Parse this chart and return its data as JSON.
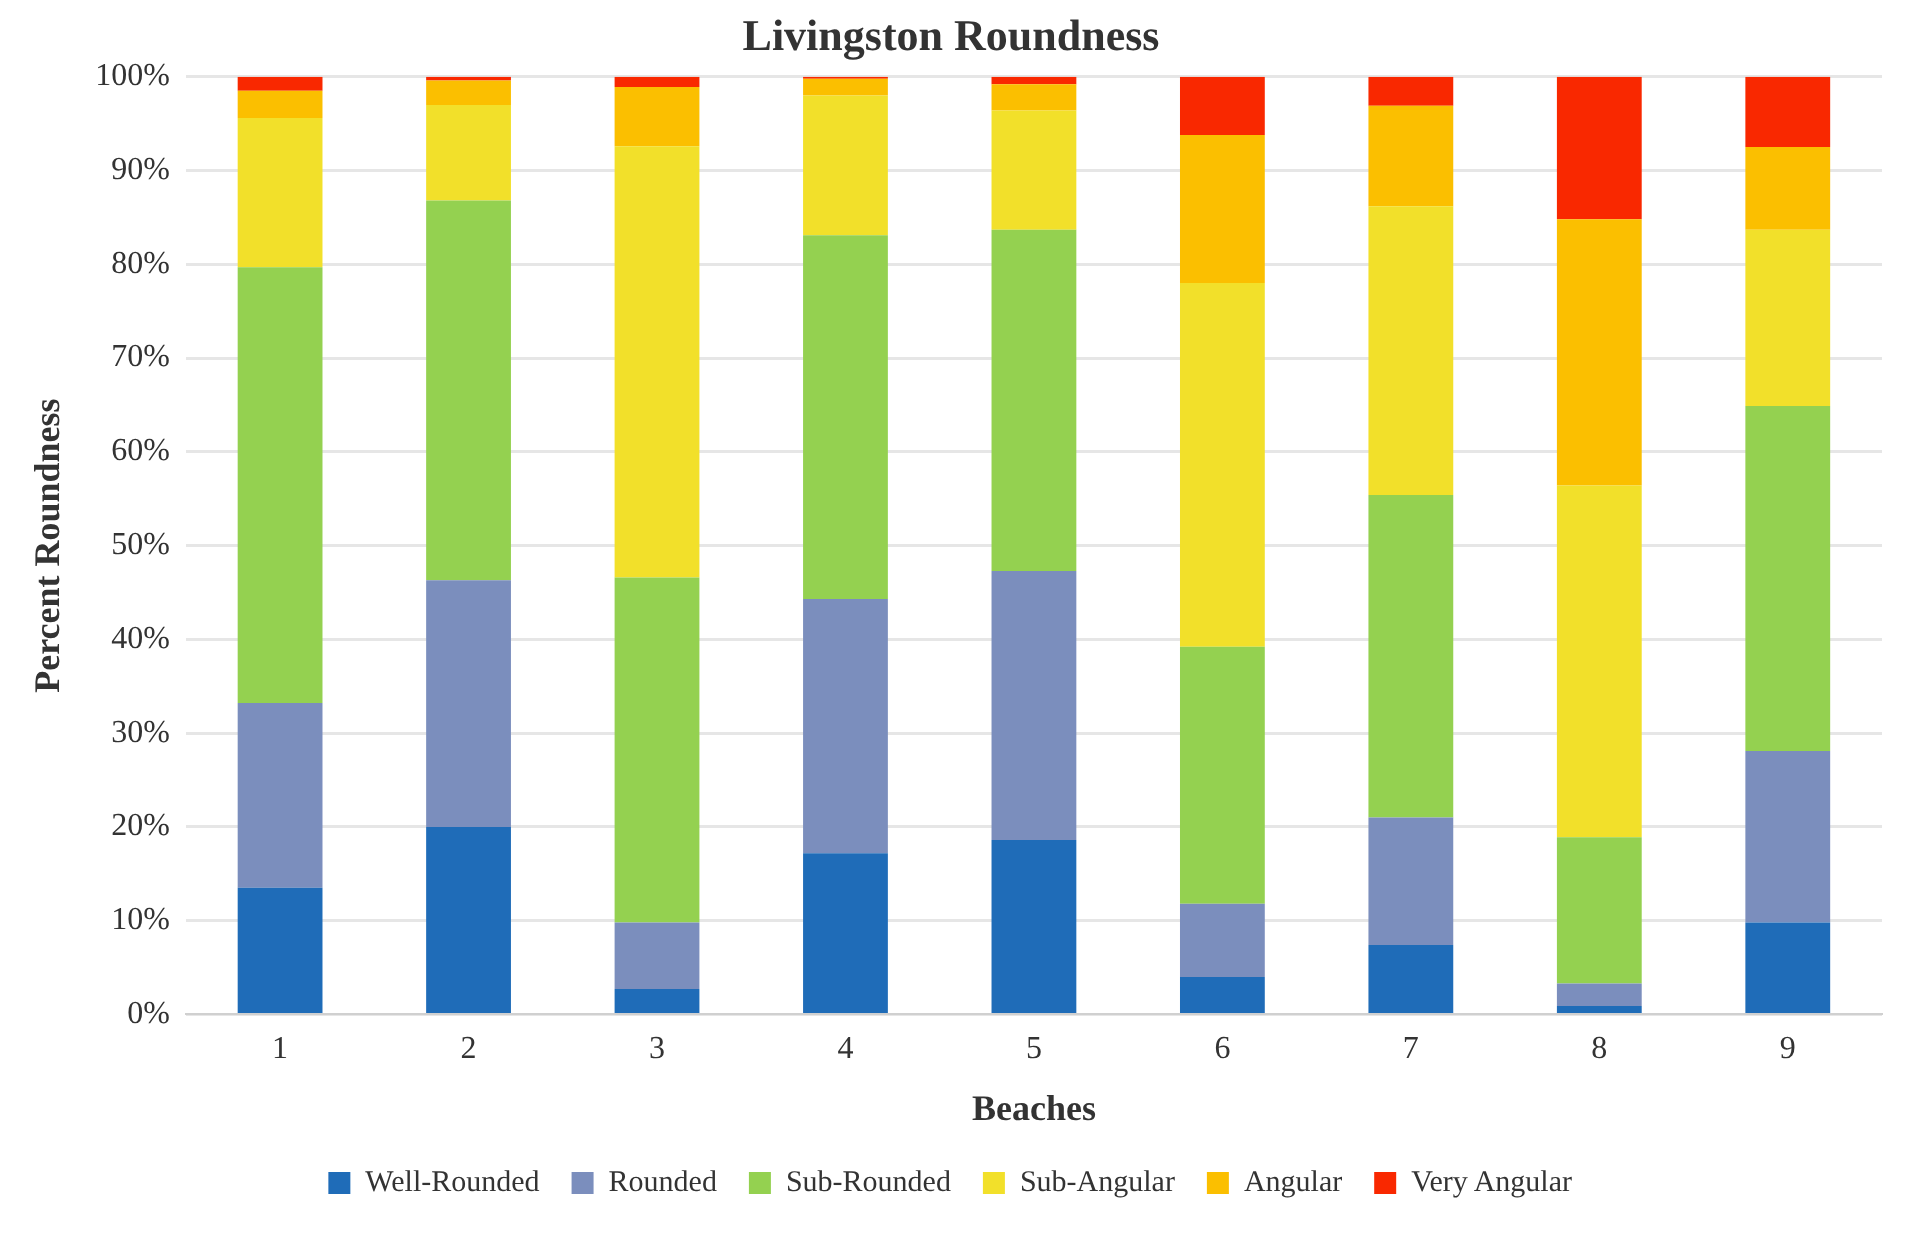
{
  "chart_data": {
    "type": "bar",
    "stacked": true,
    "title": "Livingston Roundness",
    "xlabel": "Beaches",
    "ylabel": "Percent Roundness",
    "categories": [
      "1",
      "2",
      "3",
      "4",
      "5",
      "6",
      "7",
      "8",
      "9"
    ],
    "series": [
      {
        "name": "Well-Rounded",
        "color": "#1f6cb8",
        "values": [
          13.5,
          20,
          2.7,
          17.2,
          18.6,
          4,
          7.4,
          0.9,
          9.8
        ]
      },
      {
        "name": "Rounded",
        "color": "#7b8ebd",
        "values": [
          19.7,
          26.3,
          7.1,
          27.1,
          28.7,
          7.8,
          13.6,
          2.4,
          18.3
        ]
      },
      {
        "name": "Sub-Rounded",
        "color": "#94d150",
        "values": [
          46.5,
          40.5,
          36.8,
          38.8,
          36.4,
          27.4,
          34.4,
          15.6,
          36.8
        ]
      },
      {
        "name": "Sub-Angular",
        "color": "#f2e02a",
        "values": [
          15.9,
          10.2,
          46,
          14.9,
          12.7,
          38.8,
          30.8,
          37.5,
          18.8
        ]
      },
      {
        "name": "Angular",
        "color": "#fbbf00",
        "values": [
          2.9,
          2.6,
          6.3,
          1.8,
          2.8,
          15.8,
          10.7,
          28.4,
          8.8
        ]
      },
      {
        "name": "Very Angular",
        "color": "#f92800",
        "values": [
          1.5,
          0.4,
          1.1,
          0.2,
          0.8,
          6.2,
          3.1,
          15.2,
          7.5
        ]
      }
    ],
    "ylim": [
      0,
      100
    ],
    "yticks": [
      {
        "value": 0,
        "label": "0%"
      },
      {
        "value": 10,
        "label": "10%"
      },
      {
        "value": 20,
        "label": "20%"
      },
      {
        "value": 30,
        "label": "30%"
      },
      {
        "value": 40,
        "label": "40%"
      },
      {
        "value": 50,
        "label": "50%"
      },
      {
        "value": 60,
        "label": "60%"
      },
      {
        "value": 70,
        "label": "70%"
      },
      {
        "value": 80,
        "label": "80%"
      },
      {
        "value": 90,
        "label": "90%"
      },
      {
        "value": 100,
        "label": "100%"
      }
    ],
    "grid": "y",
    "legend": "bottom"
  }
}
